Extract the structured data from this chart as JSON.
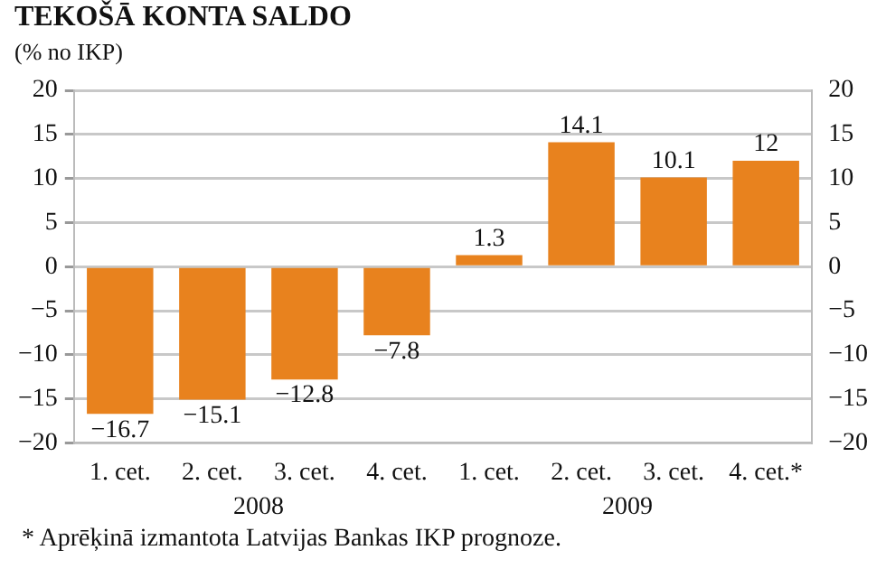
{
  "chart_data": {
    "type": "bar",
    "title": "TEKOŠĀ KONTA SALDO",
    "subtitle": "(% no IKP)",
    "categories": [
      "1. cet.",
      "2. cet.",
      "3. cet.",
      "4. cet.",
      "1. cet.",
      "2. cet.",
      "3. cet.",
      "4. cet.*"
    ],
    "values": [
      -16.7,
      -15.1,
      -12.8,
      -7.8,
      1.3,
      14.1,
      10.1,
      12
    ],
    "value_labels": [
      "−16.7",
      "−15.1",
      "−12.8",
      "−7.8",
      "1.3",
      "14.1",
      "10.1",
      "12"
    ],
    "color": "#e8821e",
    "ylim": [
      -20,
      20
    ],
    "yticks": [
      {
        "value": -20,
        "label": "−20"
      },
      {
        "value": -15,
        "label": "−15"
      },
      {
        "value": -10,
        "label": "−10"
      },
      {
        "value": -5,
        "label": "−5"
      },
      0,
      5,
      10,
      15,
      20
    ],
    "y2lim": [
      -20,
      20
    ],
    "y2ticks": [
      {
        "value": -20,
        "label": "−20"
      },
      {
        "value": -15,
        "label": "−15"
      },
      {
        "value": -10,
        "label": "−10"
      },
      {
        "value": -5,
        "label": "−5"
      },
      0,
      5,
      10,
      15,
      20
    ],
    "grid": "y",
    "legend": false,
    "annotations": [
      "2008",
      "2009",
      "* Aprēķinā izmantota Latvijas Bankas IKP prognoze."
    ]
  }
}
